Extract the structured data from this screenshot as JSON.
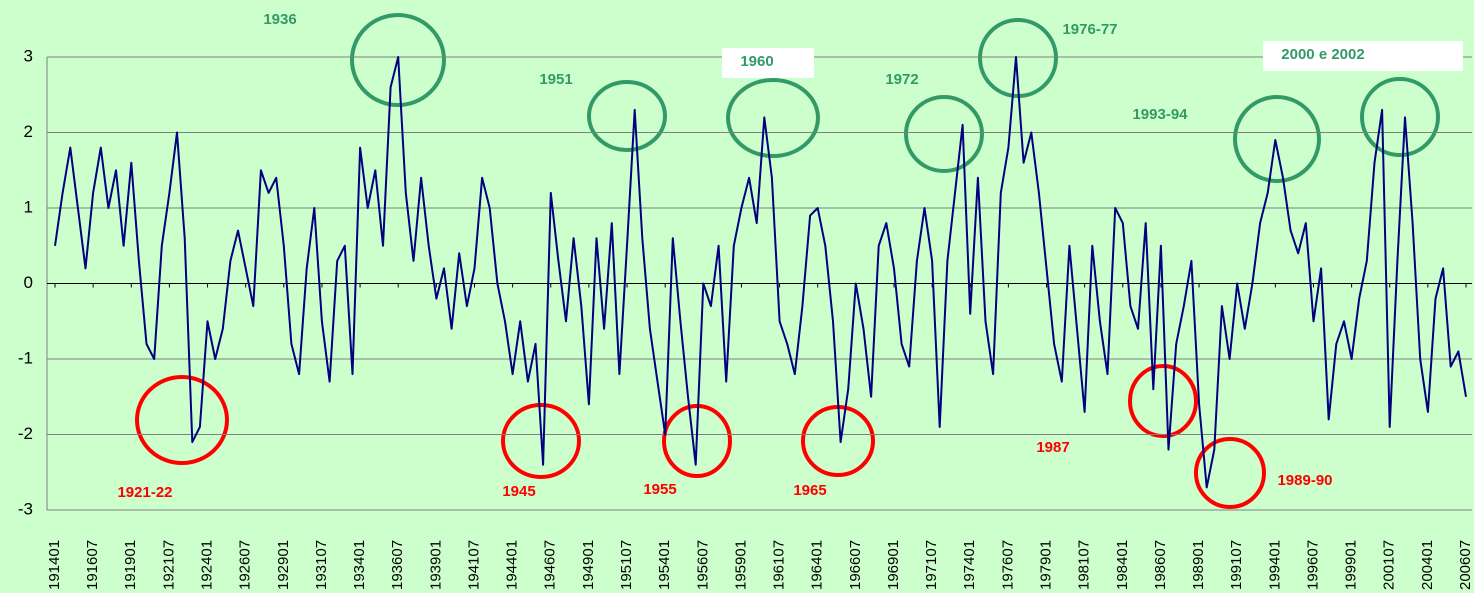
{
  "chart_data": {
    "type": "line",
    "categories": [
      "191401",
      null,
      null,
      null,
      null,
      "191607",
      null,
      null,
      null,
      null,
      "191901",
      null,
      null,
      null,
      null,
      "192107",
      null,
      null,
      null,
      null,
      "192401",
      null,
      null,
      null,
      null,
      "192607",
      null,
      null,
      null,
      null,
      "192901",
      null,
      null,
      null,
      null,
      "193107",
      null,
      null,
      null,
      null,
      "193401",
      null,
      null,
      null,
      null,
      "193607",
      null,
      null,
      null,
      null,
      "193901",
      null,
      null,
      null,
      null,
      "194107",
      null,
      null,
      null,
      null,
      "194401",
      null,
      null,
      null,
      null,
      "194607",
      null,
      null,
      null,
      null,
      "194901",
      null,
      null,
      null,
      null,
      "195107",
      null,
      null,
      null,
      null,
      "195401",
      null,
      null,
      null,
      null,
      "195607",
      null,
      null,
      null,
      null,
      "195901",
      null,
      null,
      null,
      null,
      "196107",
      null,
      null,
      null,
      null,
      "196401",
      null,
      null,
      null,
      null,
      "196607",
      null,
      null,
      null,
      null,
      "196901",
      null,
      null,
      null,
      null,
      "197107",
      null,
      null,
      null,
      null,
      "197401",
      null,
      null,
      null,
      null,
      "197607",
      null,
      null,
      null,
      null,
      "197901",
      null,
      null,
      null,
      null,
      "198107",
      null,
      null,
      null,
      null,
      "198401",
      null,
      null,
      null,
      null,
      "198607",
      null,
      null,
      null,
      null,
      "198901",
      null,
      null,
      null,
      null,
      "199107",
      null,
      null,
      null,
      null,
      "199401",
      null,
      null,
      null,
      null,
      "199607",
      null,
      null,
      null,
      null,
      "199901",
      null,
      null,
      null,
      null,
      "200107",
      null,
      null,
      null,
      null,
      "200401",
      null,
      null,
      null,
      null,
      "200607"
    ],
    "series": [
      {
        "color": "#000080",
        "values": [
          0.5,
          1.2,
          1.8,
          1.0,
          0.2,
          1.2,
          1.8,
          1.0,
          1.5,
          0.5,
          1.6,
          0.3,
          -0.8,
          -1.0,
          0.5,
          1.2,
          2.0,
          0.6,
          -2.1,
          -1.9,
          -0.5,
          -1.0,
          -0.6,
          0.3,
          0.7,
          0.2,
          -0.3,
          1.5,
          1.2,
          1.4,
          0.5,
          -0.8,
          -1.2,
          0.2,
          1.0,
          -0.5,
          -1.3,
          0.3,
          0.5,
          -1.2,
          1.8,
          1.0,
          1.5,
          0.5,
          2.6,
          3.0,
          1.2,
          0.3,
          1.4,
          0.5,
          -0.2,
          0.2,
          -0.6,
          0.4,
          -0.3,
          0.2,
          1.4,
          1.0,
          0.0,
          -0.5,
          -1.2,
          -0.5,
          -1.3,
          -0.8,
          -2.4,
          1.2,
          0.3,
          -0.5,
          0.6,
          -0.3,
          -1.6,
          0.6,
          -0.6,
          0.8,
          -1.2,
          0.5,
          2.3,
          0.6,
          -0.6,
          -1.3,
          -2.0,
          0.6,
          -0.5,
          -1.5,
          -2.4,
          0.0,
          -0.3,
          0.5,
          -1.3,
          0.5,
          1.0,
          1.4,
          0.8,
          2.2,
          1.4,
          -0.5,
          -0.8,
          -1.2,
          -0.3,
          0.9,
          1.0,
          0.5,
          -0.5,
          -2.1,
          -1.4,
          0.0,
          -0.6,
          -1.5,
          0.5,
          0.8,
          0.2,
          -0.8,
          -1.1,
          0.3,
          1.0,
          0.3,
          -1.9,
          0.3,
          1.2,
          2.1,
          -0.4,
          1.4,
          -0.5,
          -1.2,
          1.2,
          1.8,
          3.0,
          1.6,
          2.0,
          1.2,
          0.2,
          -0.8,
          -1.3,
          0.5,
          -0.6,
          -1.7,
          0.5,
          -0.5,
          -1.2,
          1.0,
          0.8,
          -0.3,
          -0.6,
          0.8,
          -1.4,
          0.5,
          -2.2,
          -0.8,
          -0.3,
          0.3,
          -1.6,
          -2.7,
          -2.2,
          -0.3,
          -1.0,
          0.0,
          -0.6,
          0.0,
          0.8,
          1.2,
          1.9,
          1.4,
          0.7,
          0.4,
          0.8,
          -0.5,
          0.2,
          -1.8,
          -0.8,
          -0.5,
          -1.0,
          -0.2,
          0.3,
          1.6,
          2.3,
          -1.9,
          0.3,
          2.2,
          0.8,
          -1.0,
          -1.7,
          -0.2,
          0.2,
          -1.1,
          -0.9,
          -1.5
        ]
      }
    ],
    "ylim": [
      -3,
      3
    ],
    "yticks": [
      -3,
      -2,
      -1,
      0,
      1,
      2,
      3
    ],
    "grid": true,
    "annotations": [
      {
        "text": "1936",
        "color": "#339966"
      },
      {
        "text": "1951",
        "color": "#339966"
      },
      {
        "text": "1960",
        "color": "#339966"
      },
      {
        "text": "1972",
        "color": "#339966"
      },
      {
        "text": "1976-77",
        "color": "#339966"
      },
      {
        "text": "1993-94",
        "color": "#339966"
      },
      {
        "text": "2000 e 2002",
        "color": "#339966"
      },
      {
        "text": "1921-22",
        "color": "#ff0000"
      },
      {
        "text": "1945",
        "color": "#ff0000"
      },
      {
        "text": "1955",
        "color": "#ff0000"
      },
      {
        "text": "1965",
        "color": "#ff0000"
      },
      {
        "text": "1987",
        "color": "#ff0000"
      },
      {
        "text": "1989-90",
        "color": "#ff0000"
      }
    ]
  }
}
